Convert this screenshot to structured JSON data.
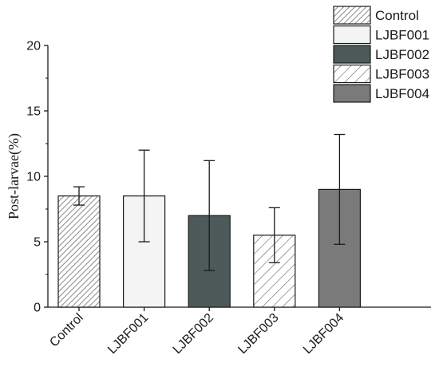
{
  "chart_data": {
    "type": "bar",
    "ylabel": "Post-larvae(%)",
    "xlabel": "",
    "ylim": [
      0,
      20
    ],
    "yticks": [
      0,
      5,
      10,
      15,
      20
    ],
    "categories": [
      "Control",
      "LJBF001",
      "LJBF002",
      "LJBF003",
      "LJBF004"
    ],
    "values": [
      8.5,
      8.5,
      7.0,
      5.5,
      9.0
    ],
    "error": [
      0.7,
      3.5,
      4.2,
      2.1,
      4.2
    ],
    "legend": {
      "position": "top-right",
      "entries": [
        "Control",
        "LJBF001",
        "LJBF002",
        "LJBF003",
        "LJBF004"
      ]
    },
    "fills": [
      {
        "color": "#ffffff",
        "pattern": "dense-diagonal-gray"
      },
      {
        "color": "#f4f4f4",
        "pattern": "none"
      },
      {
        "color": "#4e5a5a",
        "pattern": "none"
      },
      {
        "color": "#ffffff",
        "pattern": "sparse-diagonal-dark"
      },
      {
        "color": "#7a7a7a",
        "pattern": "none"
      }
    ]
  }
}
